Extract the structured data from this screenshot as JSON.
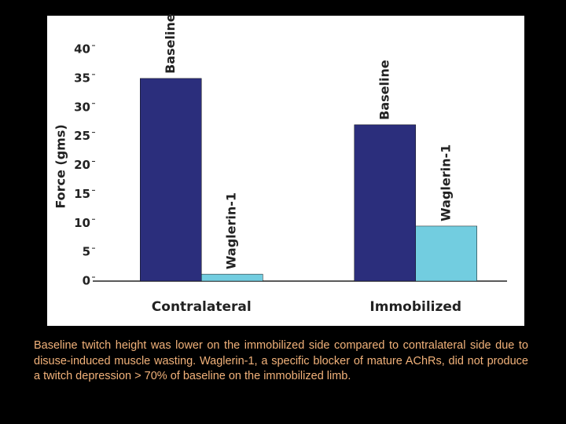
{
  "chart_data": {
    "type": "bar",
    "ylabel": "Force (gms)",
    "categories": [
      "Contralateral",
      "Immobilized"
    ],
    "series": [
      {
        "name": "Baseline",
        "color": "#2b2e7c",
        "values": [
          35,
          27
        ]
      },
      {
        "name": "Waglerin-1",
        "color": "#72cde0",
        "values": [
          1.2,
          9.5
        ]
      }
    ],
    "ylim": [
      0,
      40
    ],
    "yticks": [
      0,
      5,
      10,
      15,
      20,
      25,
      30,
      35,
      40
    ]
  },
  "caption": "Baseline twitch height was lower on the immobilized side compared to contralateral side due to disuse-induced muscle wasting. Waglerin-1, a specific blocker of mature AChRs, did not produce a twitch depression > 70% of baseline on the immobilized limb."
}
